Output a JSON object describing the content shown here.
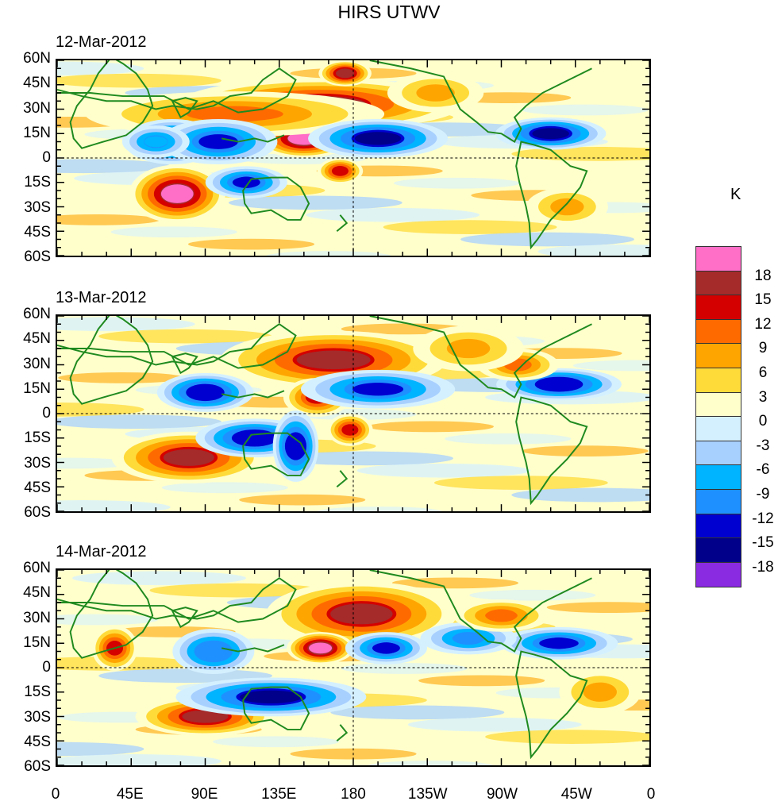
{
  "title": "HIRS UTWV",
  "colorbar": {
    "unit": "K",
    "labels": [
      "18",
      "15",
      "12",
      "9",
      "6",
      "3",
      "0",
      "-3",
      "-6",
      "-9",
      "-12",
      "-15",
      "-18"
    ],
    "colors": [
      "#ff6ec7",
      "#a52a2a",
      "#d40000",
      "#ff6a00",
      "#ffa500",
      "#ffdb3a",
      "#ffffcc",
      "#d4f0ff",
      "#a8d0ff",
      "#00b4ff",
      "#1e90ff",
      "#0000d0",
      "#00008b",
      "#8a2be2"
    ]
  },
  "map_data": {
    "type": "map",
    "projection": "cylindrical-equidistant",
    "lat_labels": [
      "60N",
      "45N",
      "30N",
      "15N",
      "0",
      "15S",
      "30S",
      "45S",
      "60S"
    ],
    "lon_labels": [
      "0",
      "45E",
      "90E",
      "135E",
      "180",
      "135W",
      "90W",
      "45W",
      "0"
    ],
    "lat_range": [
      -60,
      60
    ],
    "lon_range": [
      0,
      360
    ],
    "panels": [
      {
        "date": "12-Mar-2012",
        "anomalies": [
          {
            "lon": 160,
            "lat": 33,
            "rx": 38,
            "ry": 7,
            "value": 16
          },
          {
            "lon": 150,
            "lat": 12,
            "rx": 12,
            "ry": 5,
            "value": 19
          },
          {
            "lon": 108,
            "lat": 27,
            "rx": 40,
            "ry": 6,
            "value": 10
          },
          {
            "lon": 175,
            "lat": 52,
            "rx": 6,
            "ry": 3,
            "value": 15
          },
          {
            "lon": 172,
            "lat": -8,
            "rx": 5,
            "ry": 3,
            "value": 13
          },
          {
            "lon": 73,
            "lat": -22,
            "rx": 12,
            "ry": 8,
            "value": 18
          },
          {
            "lon": 70,
            "lat": 10,
            "rx": 12,
            "ry": 6,
            "value": -16
          },
          {
            "lon": 98,
            "lat": 10,
            "rx": 15,
            "ry": 6,
            "value": -13
          },
          {
            "lon": 195,
            "lat": 12,
            "rx": 18,
            "ry": 5,
            "value": -16
          },
          {
            "lon": 300,
            "lat": 15,
            "rx": 14,
            "ry": 4,
            "value": -17
          },
          {
            "lon": 115,
            "lat": -15,
            "rx": 10,
            "ry": 4,
            "value": -14
          },
          {
            "lon": 60,
            "lat": 10,
            "rx": 8,
            "ry": 4,
            "value": -9
          },
          {
            "lon": 310,
            "lat": -30,
            "rx": 10,
            "ry": 5,
            "value": 6
          },
          {
            "lon": 230,
            "lat": 40,
            "rx": 12,
            "ry": 5,
            "value": 6
          }
        ]
      },
      {
        "date": "13-Mar-2012",
        "anomalies": [
          {
            "lon": 168,
            "lat": 33,
            "rx": 30,
            "ry": 8,
            "value": 15
          },
          {
            "lon": 158,
            "lat": 10,
            "rx": 8,
            "ry": 5,
            "value": 14
          },
          {
            "lon": 178,
            "lat": -10,
            "rx": 5,
            "ry": 4,
            "value": 12
          },
          {
            "lon": 80,
            "lat": -27,
            "rx": 20,
            "ry": 7,
            "value": 15
          },
          {
            "lon": 90,
            "lat": 13,
            "rx": 12,
            "ry": 5,
            "value": -15
          },
          {
            "lon": 120,
            "lat": -15,
            "rx": 15,
            "ry": 5,
            "value": -15
          },
          {
            "lon": 195,
            "lat": 15,
            "rx": 20,
            "ry": 5,
            "value": -14
          },
          {
            "lon": 305,
            "lat": 18,
            "rx": 16,
            "ry": 4,
            "value": -15
          },
          {
            "lon": 145,
            "lat": -20,
            "rx": 5,
            "ry": 10,
            "value": -15
          },
          {
            "lon": 280,
            "lat": 30,
            "rx": 10,
            "ry": 4,
            "value": 10
          },
          {
            "lon": 250,
            "lat": 40,
            "rx": 14,
            "ry": 6,
            "value": 6
          }
        ]
      },
      {
        "date": "14-Mar-2012",
        "anomalies": [
          {
            "lon": 185,
            "lat": 33,
            "rx": 25,
            "ry": 9,
            "value": 16
          },
          {
            "lon": 160,
            "lat": 12,
            "rx": 8,
            "ry": 4,
            "value": 18
          },
          {
            "lon": 90,
            "lat": -30,
            "rx": 18,
            "ry": 5,
            "value": 15
          },
          {
            "lon": 35,
            "lat": 12,
            "rx": 5,
            "ry": 6,
            "value": 12
          },
          {
            "lon": 130,
            "lat": -18,
            "rx": 25,
            "ry": 5,
            "value": -16
          },
          {
            "lon": 95,
            "lat": 10,
            "rx": 10,
            "ry": 6,
            "value": -12
          },
          {
            "lon": 200,
            "lat": 12,
            "rx": 10,
            "ry": 4,
            "value": -14
          },
          {
            "lon": 305,
            "lat": 15,
            "rx": 15,
            "ry": 4,
            "value": -13
          },
          {
            "lon": 250,
            "lat": 18,
            "rx": 12,
            "ry": 4,
            "value": -11
          },
          {
            "lon": 270,
            "lat": 32,
            "rx": 12,
            "ry": 4,
            "value": 9
          },
          {
            "lon": 330,
            "lat": -15,
            "rx": 10,
            "ry": 6,
            "value": 6
          }
        ]
      }
    ]
  }
}
